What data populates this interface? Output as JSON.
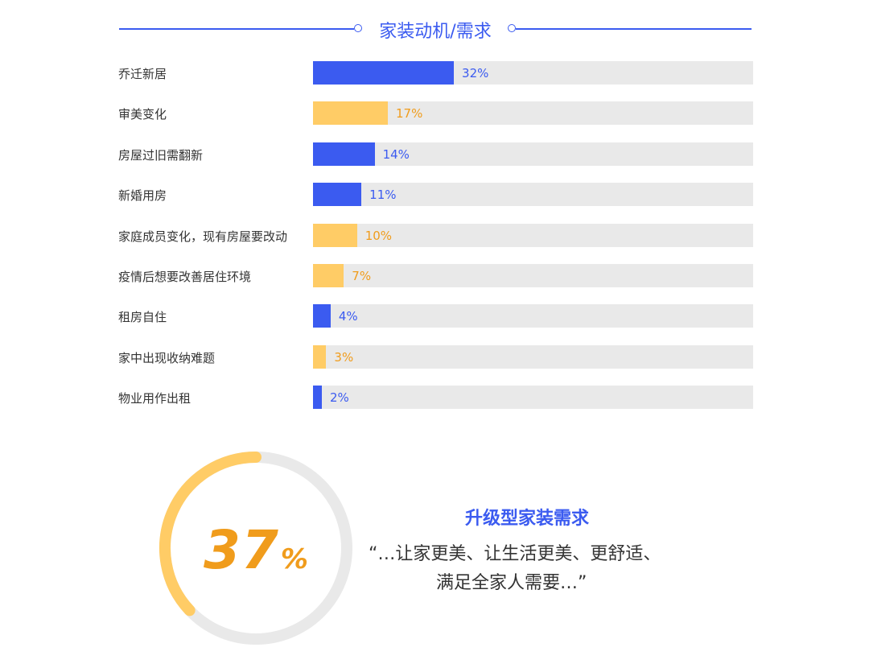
{
  "header": {
    "title": "家装动机/需求"
  },
  "colors": {
    "blue": "#3b5bf0",
    "orange": "#ffcc66",
    "orange_text": "#f09c1c",
    "track": "#e9e9e9",
    "ring_track": "#e9e9e9"
  },
  "chart_data": [
    {
      "type": "bar",
      "orientation": "horizontal",
      "categories": [
        "乔迁新居",
        "审美变化",
        "房屋过旧需翻新",
        "新婚用房",
        "家庭成员变化，现有房屋要改动",
        "疫情后想要改善居住环境",
        "租房自住",
        "家中出现收纳难题",
        "物业用作出租"
      ],
      "values": [
        32,
        17,
        14,
        11,
        10,
        7,
        4,
        3,
        2
      ],
      "value_labels": [
        "32%",
        "17%",
        "14%",
        "11%",
        "10%",
        "7%",
        "4%",
        "3%",
        "2%"
      ],
      "bar_colors": [
        "blue",
        "orange",
        "blue",
        "blue",
        "orange",
        "orange",
        "blue",
        "orange",
        "blue"
      ],
      "xlim": [
        0,
        100
      ],
      "unit": "%"
    },
    {
      "type": "pie",
      "style": "donut",
      "value": 37,
      "value_text": "37",
      "value_sign": "%",
      "title": "升级型家装需求",
      "quote_line1": "“…让家更美、让生活更美、更舒适、",
      "quote_line2": "满足全家人需要…”"
    }
  ]
}
